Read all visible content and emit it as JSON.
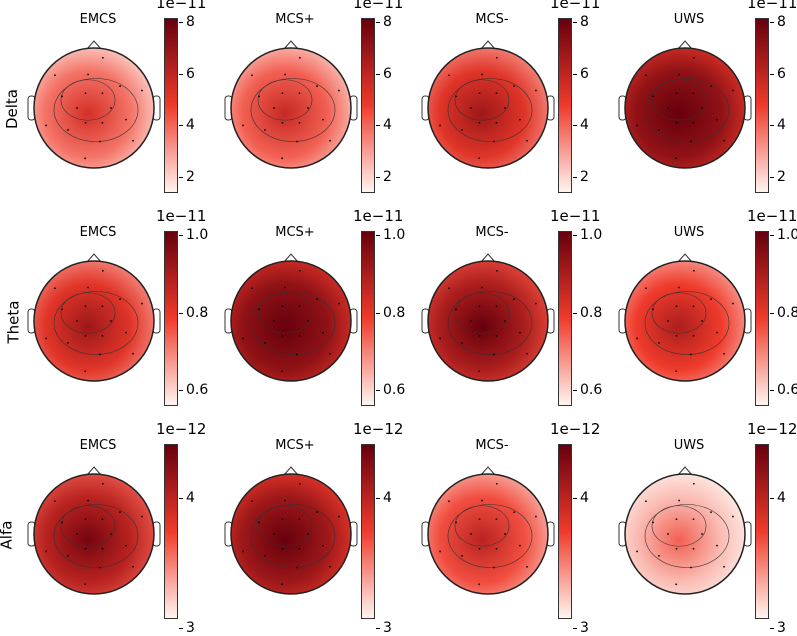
{
  "colors": {
    "low": "#fff5f0",
    "mid": "#ef3b2c",
    "high": "#67000d"
  },
  "rows": [
    {
      "label": "Delta",
      "scale": "1e−11",
      "ticks": [
        "8",
        "6",
        "4",
        "2"
      ],
      "maps": [
        {
          "title": "EMCS",
          "level": 0.35
        },
        {
          "title": "MCS+",
          "level": 0.4
        },
        {
          "title": "MCS-",
          "level": 0.55
        },
        {
          "title": "UWS",
          "level": 0.85
        }
      ]
    },
    {
      "label": "Theta",
      "scale": "1e−11",
      "ticks": [
        "1.0",
        "0.8",
        "0.6"
      ],
      "maps": [
        {
          "title": "EMCS",
          "level": 0.55
        },
        {
          "title": "MCS+",
          "level": 0.85
        },
        {
          "title": "MCS-",
          "level": 0.75
        },
        {
          "title": "UWS",
          "level": 0.5
        }
      ]
    },
    {
      "label": "Alfa",
      "scale": "1e−12",
      "ticks": [
        "4",
        "3"
      ],
      "maps": [
        {
          "title": "EMCS",
          "level": 0.7
        },
        {
          "title": "MCS+",
          "level": 0.8
        },
        {
          "title": "MCS-",
          "level": 0.45
        },
        {
          "title": "UWS",
          "level": 0.15
        }
      ]
    }
  ]
}
